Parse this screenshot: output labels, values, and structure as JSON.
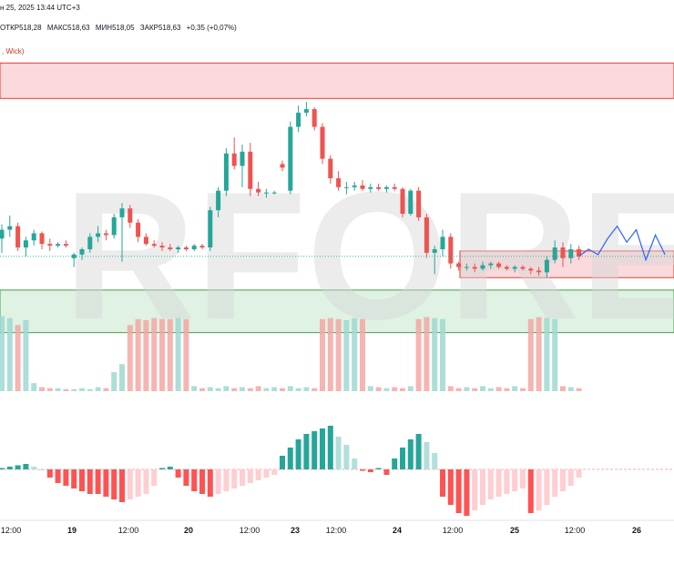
{
  "header": {
    "date_line": "н 25, 2025 13:44 UTC+3",
    "open": "ОТКР518,28",
    "high": "МАКС518,63",
    "low": "МИН518,05",
    "close": "ЗАКР518,63",
    "change": "+0,35 (+0,07%)"
  },
  "indicator_label": ", Wick)",
  "watermark": "RFOREX.c",
  "colors": {
    "up": "#26a69a",
    "down": "#ef5350",
    "zone_red": "#f8cdd0",
    "zone_green": "#d4edd9",
    "forecast": "#2962ff"
  },
  "chart_data": {
    "type": "candlestick",
    "x_tick_labels": [
      "12:00",
      "19",
      "12:00",
      "20",
      "12:00",
      "23",
      "12:00",
      "24",
      "12:00",
      "25",
      "12:00",
      "26"
    ],
    "candles": [
      [
        525.6,
        526.4,
        524.8,
        526.1
      ],
      [
        526.1,
        526.9,
        525.7,
        526.3
      ],
      [
        526.3,
        526.5,
        524.9,
        525.1
      ],
      [
        525.1,
        525.7,
        524.6,
        525.5
      ],
      [
        525.5,
        526.1,
        525.2,
        525.9
      ],
      [
        525.9,
        526.0,
        525.0,
        525.3
      ],
      [
        525.3,
        525.6,
        524.9,
        525.2
      ],
      [
        525.2,
        525.4,
        525.1,
        525.3
      ],
      [
        525.3,
        525.5,
        525.1,
        525.2
      ],
      [
        524.5,
        524.8,
        524.0,
        524.7
      ],
      [
        524.7,
        525.1,
        524.4,
        525.0
      ],
      [
        525.0,
        525.9,
        524.8,
        525.7
      ],
      [
        525.7,
        526.3,
        525.4,
        525.9
      ],
      [
        525.9,
        526.1,
        525.5,
        525.8
      ],
      [
        525.8,
        527.0,
        525.6,
        526.8
      ],
      [
        526.8,
        527.6,
        524.3,
        527.3
      ],
      [
        527.3,
        527.5,
        526.2,
        526.5
      ],
      [
        526.5,
        526.7,
        525.4,
        525.7
      ],
      [
        525.7,
        525.9,
        525.2,
        525.3
      ],
      [
        525.3,
        525.5,
        525.1,
        525.2
      ],
      [
        525.2,
        525.4,
        524.9,
        525.1
      ],
      [
        525.1,
        525.3,
        524.9,
        525.0
      ],
      [
        525.0,
        525.2,
        524.8,
        525.1
      ],
      [
        525.1,
        525.2,
        524.9,
        525.0
      ],
      [
        525.0,
        525.3,
        524.9,
        525.2
      ],
      [
        525.2,
        525.3,
        525.0,
        525.1
      ],
      [
        525.1,
        527.4,
        524.9,
        527.2
      ],
      [
        527.2,
        528.5,
        526.8,
        528.3
      ],
      [
        528.3,
        530.7,
        528.0,
        530.4
      ],
      [
        530.4,
        531.3,
        529.5,
        529.7
      ],
      [
        529.7,
        530.9,
        528.5,
        530.5
      ],
      [
        530.5,
        531.0,
        528.0,
        528.4
      ],
      [
        528.4,
        528.8,
        528.0,
        528.2
      ],
      [
        528.2,
        528.4,
        527.9,
        528.2
      ],
      [
        528.2,
        528.3,
        528.1,
        528.2
      ],
      [
        529.8,
        530.0,
        529.4,
        529.6
      ],
      [
        528.3,
        532.2,
        528.1,
        531.9
      ],
      [
        531.9,
        533.1,
        531.6,
        532.7
      ],
      [
        532.7,
        533.3,
        532.5,
        532.9
      ],
      [
        532.9,
        533.0,
        531.7,
        531.9
      ],
      [
        531.9,
        532.1,
        529.8,
        530.1
      ],
      [
        530.1,
        530.3,
        528.7,
        529.0
      ],
      [
        529.0,
        529.4,
        528.3,
        528.5
      ],
      [
        528.5,
        528.8,
        528.1,
        528.5
      ],
      [
        528.5,
        528.8,
        528.3,
        528.6
      ],
      [
        528.6,
        528.9,
        528.3,
        528.4
      ],
      [
        528.4,
        528.7,
        528.2,
        528.5
      ],
      [
        528.5,
        528.7,
        528.3,
        528.4
      ],
      [
        528.4,
        528.6,
        528.2,
        528.5
      ],
      [
        528.5,
        528.7,
        528.3,
        528.4
      ],
      [
        528.4,
        528.5,
        526.8,
        527.0
      ],
      [
        527.0,
        528.4,
        526.9,
        528.3
      ],
      [
        528.3,
        528.5,
        526.6,
        526.8
      ],
      [
        526.8,
        527.0,
        524.5,
        524.8
      ],
      [
        524.8,
        525.2,
        523.6,
        525.0
      ],
      [
        525.0,
        526.1,
        524.6,
        525.7
      ],
      [
        525.7,
        525.9,
        523.9,
        524.2
      ],
      [
        524.2,
        524.3,
        523.8,
        524.0
      ],
      [
        524.0,
        524.2,
        523.8,
        524.0
      ],
      [
        524.0,
        524.2,
        523.7,
        523.9
      ],
      [
        523.9,
        524.3,
        523.8,
        524.1
      ],
      [
        524.1,
        524.3,
        523.9,
        524.2
      ],
      [
        524.2,
        524.3,
        523.9,
        524.0
      ],
      [
        524.0,
        524.1,
        523.8,
        523.9
      ],
      [
        523.9,
        524.1,
        523.7,
        524.0
      ],
      [
        524.0,
        524.1,
        523.8,
        523.9
      ],
      [
        523.9,
        524.0,
        523.6,
        523.8
      ],
      [
        523.8,
        524.0,
        523.5,
        523.7
      ],
      [
        523.7,
        524.6,
        523.4,
        524.4
      ],
      [
        524.4,
        525.5,
        524.2,
        525.1
      ],
      [
        525.1,
        525.4,
        524.0,
        524.5
      ],
      [
        524.5,
        525.3,
        524.2,
        525.0
      ],
      [
        525.0,
        525.2,
        524.4,
        524.6
      ]
    ],
    "volume": [
      0.75,
      0.73,
      0.66,
      0.71,
      0.08,
      0.04,
      0.03,
      0.03,
      0.02,
      0.02,
      0.03,
      0.02,
      0.04,
      0.03,
      0.19,
      0.27,
      0.66,
      0.72,
      0.71,
      0.73,
      0.72,
      0.72,
      0.73,
      0.72,
      0.05,
      0.03,
      0.04,
      0.03,
      0.05,
      0.03,
      0.04,
      0.03,
      0.05,
      0.03,
      0.04,
      0.03,
      0.05,
      0.03,
      0.04,
      0.03,
      0.72,
      0.73,
      0.72,
      0.71,
      0.73,
      0.72,
      0.05,
      0.04,
      0.03,
      0.04,
      0.03,
      0.05,
      0.72,
      0.74,
      0.73,
      0.72,
      0.05,
      0.03,
      0.04,
      0.03,
      0.05,
      0.03,
      0.04,
      0.03,
      0.05,
      0.03,
      0.72,
      0.74,
      0.73,
      0.72,
      0.05,
      0.04,
      0.03
    ],
    "oscillator": [
      0.05,
      0.1,
      0.15,
      0.2,
      0.1,
      0.0,
      -0.3,
      -0.5,
      -0.6,
      -0.7,
      -0.8,
      -0.9,
      -0.9,
      -1.0,
      -1.1,
      -1.2,
      -1.1,
      -1.0,
      -0.9,
      -0.6,
      0.05,
      0.1,
      -0.3,
      -0.6,
      -0.8,
      -0.9,
      -1.0,
      -0.9,
      -0.8,
      -0.7,
      -0.6,
      -0.5,
      -0.4,
      -0.3,
      -0.2,
      0.5,
      0.8,
      1.1,
      1.3,
      1.4,
      1.5,
      1.6,
      1.2,
      0.9,
      0.4,
      -0.05,
      -0.1,
      0.05,
      -0.2,
      0.4,
      0.8,
      1.1,
      1.3,
      1.0,
      0.6,
      -1.0,
      -1.3,
      -1.6,
      -1.7,
      -1.5,
      -1.3,
      -1.1,
      -1.0,
      -0.9,
      -0.8,
      -0.7,
      -1.6,
      -1.5,
      -1.3,
      -1.0,
      -0.8,
      -0.6,
      -0.3
    ],
    "zones": [
      {
        "color": "red",
        "top": 535.5,
        "bottom": 533.5
      },
      {
        "color": "red",
        "top": 524.9,
        "bottom": 523.4
      },
      {
        "color": "green",
        "top": 522.7,
        "bottom": 520.3
      }
    ],
    "y_range": [
      517.0,
      537.0
    ]
  }
}
